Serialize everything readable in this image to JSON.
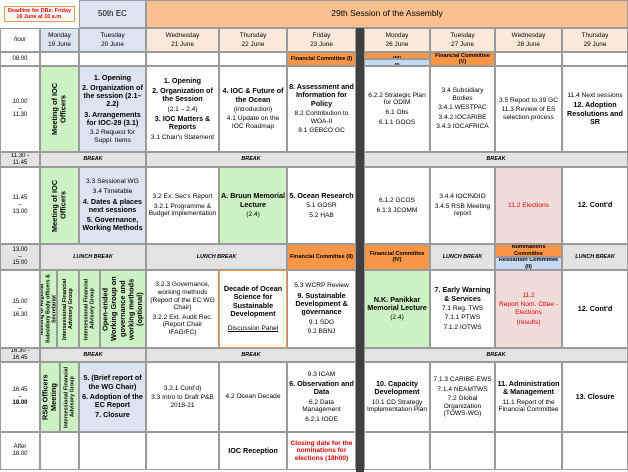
{
  "header": {
    "deadline": [
      "Deadline for DRs: Friday",
      "16 June at 10 a.m."
    ],
    "ec": "50th EC",
    "session": "29th Session of the Assembly",
    "hour": "hour"
  },
  "days": [
    {
      "name": "Monday",
      "date": "19 June"
    },
    {
      "name": "Tuesday",
      "date": "20 June"
    },
    {
      "name": "Wednesday",
      "date": "21 June"
    },
    {
      "name": "Thursday",
      "date": "22 June"
    },
    {
      "name": "Friday",
      "date": "23 June"
    },
    {
      "name": "Monday",
      "date": "26 June"
    },
    {
      "name": "Tuesday",
      "date": "27 June"
    },
    {
      "name": "Wednesday",
      "date": "28 June"
    },
    {
      "name": "Thursday",
      "date": "29 June"
    }
  ],
  "times": [
    [
      "08.00"
    ],
    [
      "10.00",
      "–",
      "11.30"
    ],
    [
      "11.30 -",
      "11.45"
    ],
    [
      "11.45",
      "–",
      "13.00"
    ],
    [
      "13.00",
      "–",
      "15.00"
    ],
    [
      "15.00",
      "–",
      "16.30"
    ],
    [
      "16.30 -",
      "16.45"
    ],
    [
      "16.45",
      "–",
      "18.00"
    ],
    [
      "After",
      "18.00"
    ]
  ],
  "cells": [
    {
      "lines": [
        "Financial Committee (I)"
      ]
    },
    {
      "lines": [
        "Financial Committee (III)"
      ]
    },
    {
      "lines": [
        "Resolution Committee (I)"
      ]
    },
    {
      "lines": [
        "Financial Committee (V)"
      ]
    },
    {
      "lines": [
        "Meeting of IOC Officers"
      ]
    },
    {
      "lines": [
        "1. Opening",
        "2. Organization of the session (2.1–2.2)",
        "3. Arrangements for IOC-29 (3.1)",
        "3.2 Request for Suppl. Items"
      ]
    },
    {
      "lines": [
        "1. Opening",
        "2. Organization of the Session",
        "(2.1 – 2.4)",
        "3. IOC Matters & Reports",
        "3.1 Chair's Statement"
      ]
    },
    {
      "lines": [
        "4. IOC & Future of the Ocean",
        "(introduction)",
        "4.1 Update on the IOC Roadmap"
      ]
    },
    {
      "lines": [
        "8. Assessment and Information for Policy",
        "8.2 Contribution to WOA-II",
        "8.1 GEBCO GC"
      ]
    },
    {
      "lines": [
        "6.2.2 Strategic Plan for ODIM",
        "6.1 Obs",
        "6.1.1 GOOS"
      ]
    },
    {
      "lines": [
        "3.4 Subsidiary Bodies",
        "3.4.1 WESTPAC",
        "3.4.2 IOCARIBE",
        "3.4.3 IOCAFRICA"
      ]
    },
    {
      "lines": [
        "3.5 Report to 39 GC",
        "11.3 Review of ES selection process"
      ]
    },
    {
      "lines": [
        "11.4 Next sessions",
        "12. Adoption Resolutions and SR"
      ]
    },
    {
      "lines": [
        "BREAK"
      ]
    },
    {
      "lines": [
        "BREAK"
      ]
    },
    {
      "lines": [
        "BREAK"
      ]
    },
    {
      "lines": [
        "Meeting of IOC Officers"
      ]
    },
    {
      "lines": [
        "3.3 Sessional WG",
        "3.4 Timetable",
        "4. Dates & places next sessions",
        "5. Governance, Working Methods"
      ]
    },
    {
      "lines": [
        "3.2 Ex. Sec's Report",
        "3.2.1 Programme & Budget implementation"
      ]
    },
    {
      "lines": [
        "A. Bruun Memorial Lecture",
        "(2.4)"
      ]
    },
    {
      "lines": [
        "5. Ocean Research",
        "5.1 GOSR",
        "5.2 HAB"
      ]
    },
    {
      "lines": [
        "6.1.2 GCOS",
        "6.1.3 JCOMM"
      ]
    },
    {
      "lines": [
        "3.4.4 IOCINDIO",
        "3.4.5 RSB Meeting report"
      ]
    },
    {
      "lines": [
        "11.2 Elections"
      ]
    },
    {
      "lines": [
        "12. Cont'd"
      ]
    },
    {
      "lines": [
        "LUNCH BREAK"
      ]
    },
    {
      "lines": [
        "LUNCH BREAK"
      ]
    },
    {
      "lines": [
        "Financial Committee (II)"
      ]
    },
    {
      "lines": [
        "Financial Committee (IV)"
      ]
    },
    {
      "lines": [
        "LUNCH BREAK"
      ]
    },
    {
      "lines": [
        "Nominations Committee"
      ]
    },
    {
      "lines": [
        "Resolution Committee (II)"
      ]
    },
    {
      "lines": [
        "LUNCH BREAK"
      ]
    },
    {
      "lines": [
        "Meeting of Regional Subsidiary Body officers & Secretariat"
      ]
    },
    {
      "lines": [
        "Intersessional Financial Advisory Group"
      ]
    },
    {
      "lines": [
        "Intersessional Financial Advisory Group"
      ]
    },
    {
      "lines": [
        "Open-ended Working Group on governance and working methods (optional)"
      ]
    },
    {
      "lines": [
        "3.2.3 Governance, working methods (Report of the EC WG Chair)",
        "3.2.2 Ext. Audit Rec. (Report Chair IFAG/FC)"
      ]
    },
    {
      "lines": [
        "Decade of Ocean Science for Sustainable Development",
        "Discussion Panel"
      ]
    },
    {
      "lines": [
        "5.3 WCRP Review",
        "9. Sustainable Development & governance",
        "9.1 SDG",
        "9.2 BBNJ"
      ]
    },
    {
      "lines": [
        "N.K. Panikkar Memorial Lecture",
        "(2.4)"
      ]
    },
    {
      "lines": [
        "7. Early Warning & Services",
        "7.1 Reg. TWS",
        "7.1.1 PTWS",
        "7.1.2 IOTWS"
      ]
    },
    {
      "lines": [
        "11.2",
        "Report Nom. Cttee - Elections",
        "(results)"
      ]
    },
    {
      "lines": [
        "12. Cont'd"
      ]
    },
    {
      "lines": [
        "BREAK"
      ]
    },
    {
      "lines": [
        "BREAK"
      ]
    },
    {
      "lines": [
        "BREAK"
      ]
    },
    {
      "lines": [
        "RSB Officers Meeting"
      ]
    },
    {
      "lines": [
        "Intersessional Financial Advisory Group"
      ]
    },
    {
      "lines": [
        "5. (Brief report of the WG Chair)",
        "6. Adoption of the EC Report",
        "7. Closure"
      ]
    },
    {
      "lines": [
        "3.2.1 Cont'd)",
        "3.3 Intro to Draft P&B 2018-21"
      ]
    },
    {
      "lines": [
        "4.2 Ocean Decade"
      ]
    },
    {
      "lines": [
        "9.3 ICAM",
        "6. Observation and Data",
        "6.2 Data Management",
        "6.2.1 IODE"
      ]
    },
    {
      "lines": [
        "10. Capacity Development",
        "10.1 CD Strategy Implementation Plan"
      ]
    },
    {
      "lines": [
        "7.1.3 CARIBE-EWS",
        "7.1.4 NEAMTWS",
        "7.2 Global Organization (TOWS-WG)"
      ]
    },
    {
      "lines": [
        "11. Administration & Management",
        "11.1 Report of the Financial Committee"
      ]
    },
    {
      "lines": [
        "13. Closure"
      ]
    },
    {
      "lines": [
        "IOC Reception"
      ]
    },
    {
      "lines": [
        "Closing date for the nominations for elections (18h00)"
      ]
    }
  ]
}
